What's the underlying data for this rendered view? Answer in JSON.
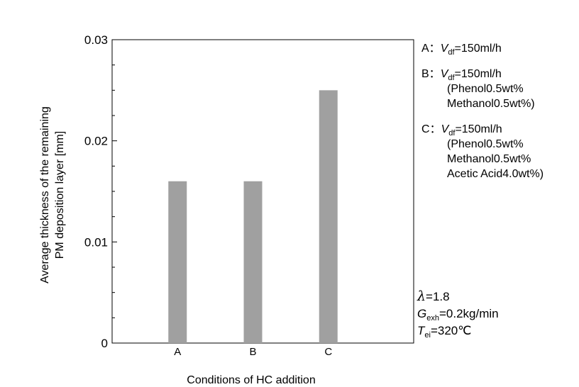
{
  "chart_data": {
    "type": "bar",
    "categories": [
      "A",
      "B",
      "C"
    ],
    "values": [
      0.016,
      0.016,
      0.025
    ],
    "ylim": [
      0,
      0.03
    ],
    "yticks": [
      "0",
      "0.01",
      "0.02",
      "0.03"
    ],
    "ytick_values": [
      0,
      0.01,
      0.02,
      0.03
    ],
    "minor_step": 0.0025,
    "xlabel": "Conditions of HC addition",
    "ylabel_line1": "Average thickness of the remaining",
    "ylabel_line2": "PM deposition layer [mm]",
    "bar_color": "#a0a0a0",
    "grid": false
  },
  "legend": [
    {
      "key": "A",
      "sep": "：",
      "var": "V",
      "sub": "df",
      "value": "=150ml/h",
      "details": []
    },
    {
      "key": "B",
      "sep": "：",
      "var": "V",
      "sub": "df",
      "value": "=150ml/h",
      "details": [
        "(Phenol0.5wt%",
        "Methanol0.5wt%)"
      ]
    },
    {
      "key": "C",
      "sep": "：",
      "var": "V",
      "sub": "df",
      "value": "=150ml/h",
      "details": [
        "(Phenol0.5wt%",
        "Methanol0.5wt%",
        "Acetic Acid4.0wt%)"
      ]
    }
  ],
  "conditions": {
    "lambda_symbol": "λ",
    "lambda_value": "=1.8",
    "g_var": "G",
    "g_sub": "exh",
    "g_value": "=0.2kg/min",
    "t_var": "T",
    "t_sub": "ei",
    "t_value": "=320℃"
  }
}
